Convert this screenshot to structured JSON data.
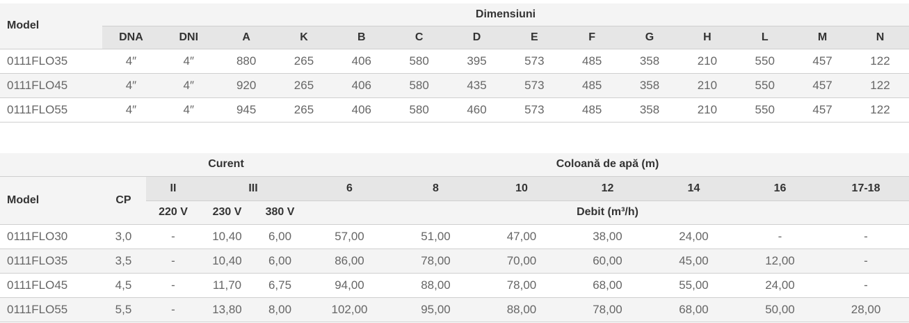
{
  "table1": {
    "header": {
      "model": "Model",
      "group": "Dimensiuni",
      "columns": [
        "DNA",
        "DNI",
        "A",
        "K",
        "B",
        "C",
        "D",
        "E",
        "F",
        "G",
        "H",
        "L",
        "M",
        "N"
      ]
    },
    "rows": [
      [
        "0111FLO35",
        "4″",
        "4″",
        "880",
        "265",
        "406",
        "580",
        "395",
        "573",
        "485",
        "358",
        "210",
        "550",
        "457",
        "122"
      ],
      [
        "0111FLO45",
        "4″",
        "4″",
        "920",
        "265",
        "406",
        "580",
        "435",
        "573",
        "485",
        "358",
        "210",
        "550",
        "457",
        "122"
      ],
      [
        "0111FLO55",
        "4″",
        "4″",
        "945",
        "265",
        "406",
        "580",
        "460",
        "573",
        "485",
        "358",
        "210",
        "550",
        "457",
        "122"
      ]
    ]
  },
  "table2": {
    "header": {
      "model": "Model",
      "cp": "CP",
      "curent": "Curent",
      "coloana": "Coloană de apă (m)",
      "phases": [
        "II",
        "III"
      ],
      "heights": [
        "6",
        "8",
        "10",
        "12",
        "14",
        "16",
        "17-18"
      ],
      "voltages": [
        "220 V",
        "230 V",
        "380 V"
      ],
      "debit": "Debit (m³/h)"
    },
    "rows": [
      [
        "0111FLO30",
        "3,0",
        "-",
        "10,40",
        "6,00",
        "57,00",
        "51,00",
        "47,00",
        "38,00",
        "24,00",
        "-",
        "-"
      ],
      [
        "0111FLO35",
        "3,5",
        "-",
        "10,40",
        "6,00",
        "86,00",
        "78,00",
        "70,00",
        "60,00",
        "45,00",
        "12,00",
        "-"
      ],
      [
        "0111FLO45",
        "4,5",
        "-",
        "11,70",
        "6,75",
        "94,00",
        "88,00",
        "78,00",
        "68,00",
        "55,00",
        "24,00",
        "-"
      ],
      [
        "0111FLO55",
        "5,5",
        "-",
        "13,80",
        "8,00",
        "102,00",
        "95,00",
        "88,00",
        "78,00",
        "68,00",
        "50,00",
        "28,00"
      ]
    ]
  }
}
